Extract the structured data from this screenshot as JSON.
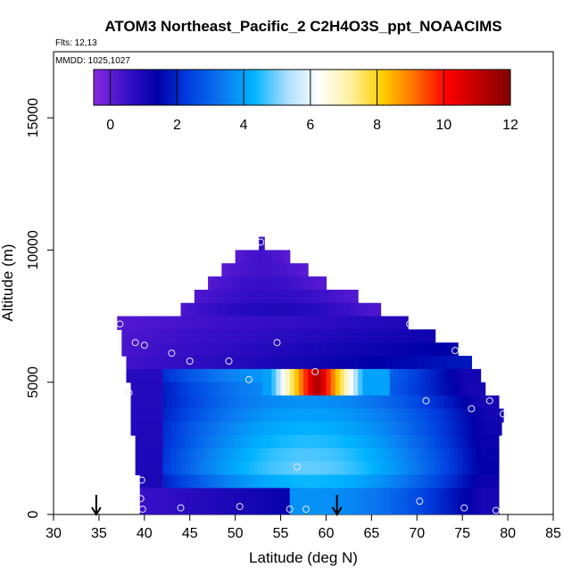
{
  "chart_data": {
    "type": "heatmap",
    "title": "ATOM3 Northeast_Pacific_2 C2H4O3S_ppt_NOAACIMS",
    "subtitle_flights": "Flts: 12,13",
    "subtitle_dates": "MMDD: 1025,1027",
    "xlabel": "Latitude (deg N)",
    "ylabel": "Altitude (m)",
    "xlim": [
      30,
      85
    ],
    "ylim": [
      0,
      17500
    ],
    "x_ticks": [
      "30",
      "35",
      "40",
      "45",
      "50",
      "55",
      "60",
      "65",
      "70",
      "75",
      "80",
      "85"
    ],
    "x_tick_values": [
      30,
      35,
      40,
      45,
      50,
      55,
      60,
      65,
      70,
      75,
      80,
      85
    ],
    "y_ticks": [
      "0",
      "5000",
      "10000",
      "15000"
    ],
    "y_tick_values": [
      0,
      5000,
      10000,
      15000
    ],
    "colorbar": {
      "range": [
        -0.5,
        12
      ],
      "tick_labels": [
        "0",
        "2",
        "4",
        "6",
        "8",
        "10",
        "12"
      ],
      "tick_values": [
        0,
        2,
        4,
        6,
        8,
        10,
        12
      ],
      "colors": [
        "#8a2be2",
        "#3a10c8",
        "#0000a8",
        "#0040e0",
        "#0a78f0",
        "#00b4ff",
        "#a8dcff",
        "#ffffff",
        "#fff0a0",
        "#ffd000",
        "#ff7000",
        "#ff0000",
        "#c00000",
        "#800000"
      ]
    },
    "arrows_latitude": [
      34.7,
      61.2
    ],
    "altitude_bands": [
      {
        "alt": [
          10000,
          10500
        ],
        "lat": [
          52.6,
          53.2
        ],
        "value": 0.5
      },
      {
        "alt": [
          9500,
          10000
        ],
        "lat": [
          50,
          56
        ],
        "value": 0.3
      },
      {
        "alt": [
          9000,
          9500
        ],
        "lat": [
          48.5,
          58
        ],
        "value": 0.3
      },
      {
        "alt": [
          8500,
          9000
        ],
        "lat": [
          47,
          60
        ],
        "value": 0.4
      },
      {
        "alt": [
          8000,
          8500
        ],
        "lat": [
          45.5,
          63.5
        ],
        "value": 0.5
      },
      {
        "alt": [
          7500,
          8000
        ],
        "lat": [
          44,
          66
        ],
        "value": 0.7
      },
      {
        "alt": [
          7000,
          7500
        ],
        "lat": [
          37,
          69
        ],
        "value": 0.9
      },
      {
        "alt": [
          6500,
          7000
        ],
        "lat": [
          37.5,
          72
        ],
        "value": 1.2
      },
      {
        "alt": [
          6000,
          6500
        ],
        "lat": [
          37.5,
          74.5
        ],
        "value": 1.5
      },
      {
        "alt": [
          5500,
          6000
        ],
        "lat": [
          38,
          76
        ],
        "value": 1.8
      },
      {
        "alt": [
          5000,
          5500
        ],
        "lat": [
          38,
          77
        ],
        "value": 3.2
      },
      {
        "alt": [
          4500,
          5000
        ],
        "lat": [
          38.5,
          77.5
        ],
        "value": 3.0
      },
      {
        "alt": [
          4000,
          4500
        ],
        "lat": [
          38.5,
          79
        ],
        "value": 3.0
      },
      {
        "alt": [
          3500,
          4000
        ],
        "lat": [
          38.5,
          79.5
        ],
        "value": 3.2
      },
      {
        "alt": [
          3000,
          3500
        ],
        "lat": [
          38.5,
          79.3
        ],
        "value": 3.4
      },
      {
        "alt": [
          2500,
          3000
        ],
        "lat": [
          39,
          79
        ],
        "value": 3.6
      },
      {
        "alt": [
          2000,
          2500
        ],
        "lat": [
          39,
          79
        ],
        "value": 3.8
      },
      {
        "alt": [
          1500,
          2000
        ],
        "lat": [
          39,
          79
        ],
        "value": 3.9
      },
      {
        "alt": [
          1000,
          1500
        ],
        "lat": [
          39.5,
          79
        ],
        "value": 3.5
      },
      {
        "alt": [
          500,
          1000
        ],
        "lat": [
          39.5,
          79
        ],
        "value": 3.0
      },
      {
        "alt": [
          0,
          500
        ],
        "lat": [
          39.5,
          79
        ],
        "value": 3.0
      }
    ],
    "high_plume": {
      "alt": [
        4900,
        5600
      ],
      "lat": [
        53,
        67
      ],
      "peak_lat": [
        57,
        61
      ],
      "peak_value": 11.5
    },
    "sample_points": [
      {
        "lat": 52.8,
        "alt": 10300
      },
      {
        "lat": 37.3,
        "alt": 7200
      },
      {
        "lat": 69.2,
        "alt": 7200
      },
      {
        "lat": 39.0,
        "alt": 6500
      },
      {
        "lat": 40.0,
        "alt": 6400
      },
      {
        "lat": 54.6,
        "alt": 6500
      },
      {
        "lat": 43.0,
        "alt": 6100
      },
      {
        "lat": 74.2,
        "alt": 6200
      },
      {
        "lat": 45.0,
        "alt": 5800
      },
      {
        "lat": 49.3,
        "alt": 5800
      },
      {
        "lat": 51.5,
        "alt": 5100
      },
      {
        "lat": 58.8,
        "alt": 5400
      },
      {
        "lat": 38.3,
        "alt": 4600
      },
      {
        "lat": 71.0,
        "alt": 4300
      },
      {
        "lat": 76.0,
        "alt": 4000
      },
      {
        "lat": 78.0,
        "alt": 4300
      },
      {
        "lat": 79.5,
        "alt": 3800
      },
      {
        "lat": 56.8,
        "alt": 1800
      },
      {
        "lat": 39.7,
        "alt": 1300
      },
      {
        "lat": 39.6,
        "alt": 600
      },
      {
        "lat": 39.8,
        "alt": 200
      },
      {
        "lat": 44.0,
        "alt": 250
      },
      {
        "lat": 50.5,
        "alt": 300
      },
      {
        "lat": 56.0,
        "alt": 200
      },
      {
        "lat": 57.8,
        "alt": 200
      },
      {
        "lat": 70.3,
        "alt": 500
      },
      {
        "lat": 75.2,
        "alt": 250
      },
      {
        "lat": 78.7,
        "alt": 150
      }
    ]
  }
}
